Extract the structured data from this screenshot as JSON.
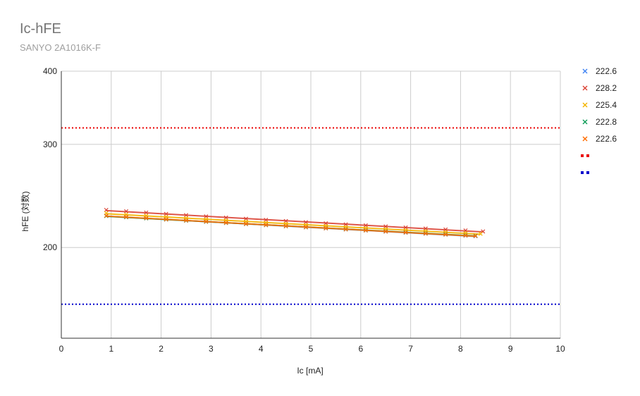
{
  "chart_data": {
    "type": "scatter",
    "title": "Ic-hFE",
    "subtitle": "SANYO 2A1016K-F",
    "xlabel": "Ic [mA]",
    "ylabel": "hFE (対数)",
    "xlim": [
      0,
      10
    ],
    "ylim": [
      140,
      400
    ],
    "yscale": "log",
    "x_ticks": [
      "0",
      "1",
      "2",
      "3",
      "4",
      "5",
      "6",
      "7",
      "8",
      "9",
      "10"
    ],
    "y_ticks": [
      {
        "value": 200,
        "label": "200"
      },
      {
        "value": 300,
        "label": "300"
      },
      {
        "value": 400,
        "label": "400"
      }
    ],
    "grid": true,
    "legend_position": "right",
    "series": [
      {
        "name": "222.6",
        "color": "#4285f4",
        "marker": "x",
        "x": [
          0.9,
          1.3,
          1.7,
          2.1,
          2.5,
          2.9,
          3.3,
          3.7,
          4.1,
          4.5,
          4.9,
          5.3,
          5.7,
          6.1,
          6.5,
          6.9,
          7.3,
          7.7,
          8.1,
          8.3
        ],
        "y": [
          226.5,
          225.4,
          224.4,
          223.3,
          222.3,
          221.3,
          220.3,
          219.3,
          218.4,
          217.4,
          216.5,
          215.6,
          214.7,
          213.8,
          212.9,
          212.0,
          211.2,
          210.4,
          209.5,
          209.1
        ]
      },
      {
        "name": "228.2",
        "color": "#db4437",
        "marker": "x",
        "x": [
          0.9,
          1.3,
          1.7,
          2.1,
          2.5,
          2.9,
          3.3,
          3.7,
          4.1,
          4.5,
          4.9,
          5.3,
          5.7,
          6.1,
          6.5,
          6.9,
          7.3,
          7.7,
          8.1,
          8.45
        ],
        "y": [
          231.8,
          230.6,
          229.4,
          228.2,
          227.1,
          226.0,
          224.9,
          223.9,
          222.9,
          221.9,
          220.9,
          219.9,
          219.0,
          218.1,
          217.2,
          216.3,
          215.4,
          214.6,
          213.8,
          213.0
        ]
      },
      {
        "name": "225.4",
        "color": "#f4b400",
        "marker": "x",
        "x": [
          0.9,
          1.3,
          1.7,
          2.1,
          2.5,
          2.9,
          3.3,
          3.7,
          4.1,
          4.5,
          4.9,
          5.3,
          5.7,
          6.1,
          6.5,
          6.9,
          7.3,
          7.7,
          8.1,
          8.4
        ],
        "y": [
          228.9,
          227.7,
          226.6,
          225.5,
          224.4,
          223.4,
          222.4,
          221.4,
          220.4,
          219.5,
          218.5,
          217.6,
          216.7,
          215.8,
          215.0,
          214.1,
          213.3,
          212.5,
          211.7,
          211.1
        ]
      },
      {
        "name": "222.8",
        "color": "#0f9d58",
        "marker": "x",
        "x": [
          0.9,
          1.3,
          1.7,
          2.1,
          2.5,
          2.9,
          3.3,
          3.7,
          4.1,
          4.5,
          4.9,
          5.3,
          5.7,
          6.1,
          6.5,
          6.9,
          7.3,
          7.7,
          8.1,
          8.3
        ],
        "y": [
          226.4,
          225.3,
          224.3,
          223.3,
          222.3,
          221.3,
          220.3,
          219.4,
          218.5,
          217.5,
          216.6,
          215.8,
          214.9,
          214.0,
          213.2,
          212.3,
          211.5,
          210.7,
          209.9,
          209.5
        ]
      },
      {
        "name": "222.6",
        "color": "#ff6d01",
        "marker": "x",
        "x": [
          0.9,
          1.3,
          1.7,
          2.1,
          2.5,
          2.9,
          3.3,
          3.7,
          4.1,
          4.5,
          4.9,
          5.3,
          5.7,
          6.1,
          6.5,
          6.9,
          7.3,
          7.7,
          8.1,
          8.3
        ],
        "y": [
          226.6,
          225.5,
          224.5,
          223.4,
          222.4,
          221.4,
          220.4,
          219.4,
          218.5,
          217.5,
          216.6,
          215.7,
          214.8,
          213.9,
          213.0,
          212.2,
          211.3,
          210.5,
          209.7,
          209.3
        ]
      }
    ],
    "reference_lines": [
      {
        "name": "",
        "value": 320,
        "color": "#ea0000",
        "style": "dotted"
      },
      {
        "name": "",
        "value": 160,
        "color": "#0000cc",
        "style": "dotted"
      }
    ]
  }
}
